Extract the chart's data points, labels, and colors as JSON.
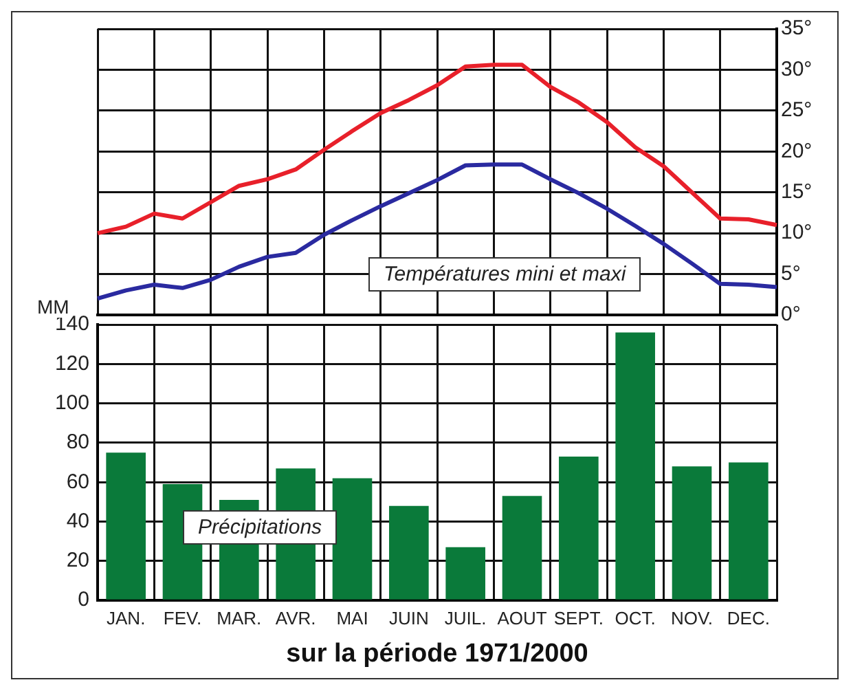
{
  "chart_data": [
    {
      "type": "line",
      "categories": [
        null,
        null,
        null,
        null,
        null,
        null,
        null,
        null,
        null,
        null,
        null,
        null,
        null,
        null,
        null,
        null,
        null,
        null,
        null,
        null,
        null,
        null,
        null,
        null,
        null
      ],
      "ylim": [
        0,
        35
      ],
      "yticks": [
        {
          "value": 0,
          "label": "0°"
        },
        {
          "value": 5,
          "label": "5°"
        },
        {
          "value": 10,
          "label": "10°"
        },
        {
          "value": 15,
          "label": "15°"
        },
        {
          "value": 20,
          "label": "20°"
        },
        {
          "value": 25,
          "label": "25°"
        },
        {
          "value": 30,
          "label": "30°"
        },
        {
          "value": 35,
          "label": "35°"
        }
      ],
      "grid": true,
      "tick_labels": "y",
      "annotations": [
        "Températures mini et maxi"
      ],
      "series": [
        {
          "color": "#e8202a",
          "values": [
            10,
            10.8,
            12.4,
            11.8,
            13.8,
            15.8,
            16.6,
            17.8,
            20.2,
            22.5,
            24.7,
            26.3,
            28.1,
            30.4,
            30.6,
            30.6,
            27.9,
            26,
            23.6,
            20.5,
            18.2,
            15,
            11.8,
            11.7,
            11
          ]
        },
        {
          "color": "#2a2aa0",
          "values": [
            2,
            3,
            3.7,
            3.3,
            4.3,
            5.9,
            7.1,
            7.6,
            9.8,
            11.6,
            13.3,
            14.9,
            16.5,
            18.3,
            18.4,
            18.4,
            16.6,
            14.9,
            13,
            10.9,
            8.7,
            6.3,
            3.8,
            3.7,
            3.4
          ]
        }
      ]
    },
    {
      "type": "bar",
      "categories": [
        "JAN.",
        "FEV.",
        "MAR.",
        "AVR.",
        "MAI",
        "JUIN",
        "JUIL.",
        "AOUT",
        "SEPT.",
        "OCT.",
        "NOV.",
        "DEC."
      ],
      "values": [
        75,
        59,
        51,
        67,
        62,
        48,
        27,
        53,
        73,
        136,
        68,
        70
      ],
      "color": "#0a7a3a",
      "ylim": [
        0,
        140
      ],
      "yticks": [
        0,
        20,
        40,
        60,
        80,
        100,
        120,
        140
      ],
      "grid": true,
      "ylabel": "MM",
      "xlabel": "sur la période 1971/2000",
      "annotations": [
        "Précipitations"
      ]
    }
  ]
}
